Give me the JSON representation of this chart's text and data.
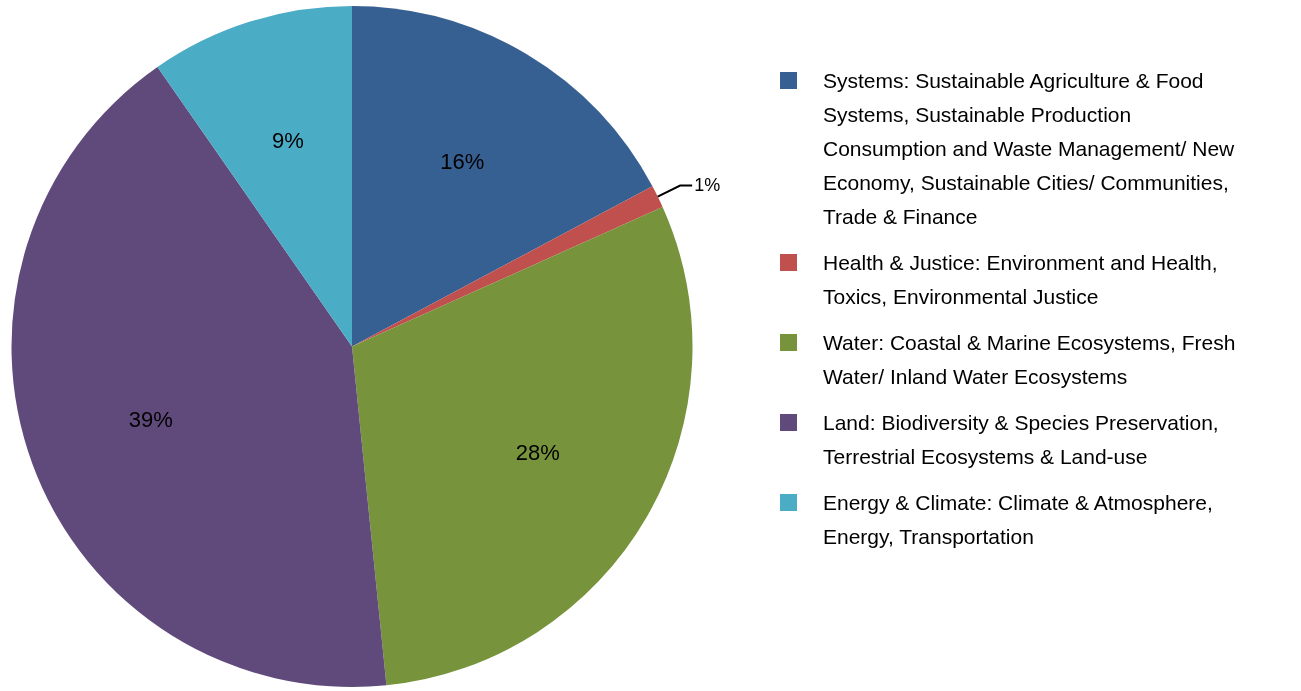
{
  "chart_data": {
    "type": "pie",
    "categories": [
      "Systems: Sustainable Agriculture & Food Systems, Sustainable Production Consumption and Waste Management/ New Economy, Sustainable Cities/ Communities, Trade & Finance",
      "Health & Justice: Environment and Health, Toxics, Environmental Justice",
      "Water: Coastal & Marine Ecosystems, Fresh Water/ Inland Water Ecosystems",
      "Land: Biodiversity & Species Preservation, Terrestrial Ecosystems & Land-use",
      "Energy & Climate: Climate & Atmosphere, Energy, Transportation"
    ],
    "values": [
      16,
      1,
      28,
      39,
      9
    ],
    "value_labels": [
      "16%",
      "1%",
      "28%",
      "39%",
      "9%"
    ],
    "colors": [
      "#376092",
      "#c0504d",
      "#77933c",
      "#604a7b",
      "#4bacc6"
    ],
    "legend": "right"
  }
}
